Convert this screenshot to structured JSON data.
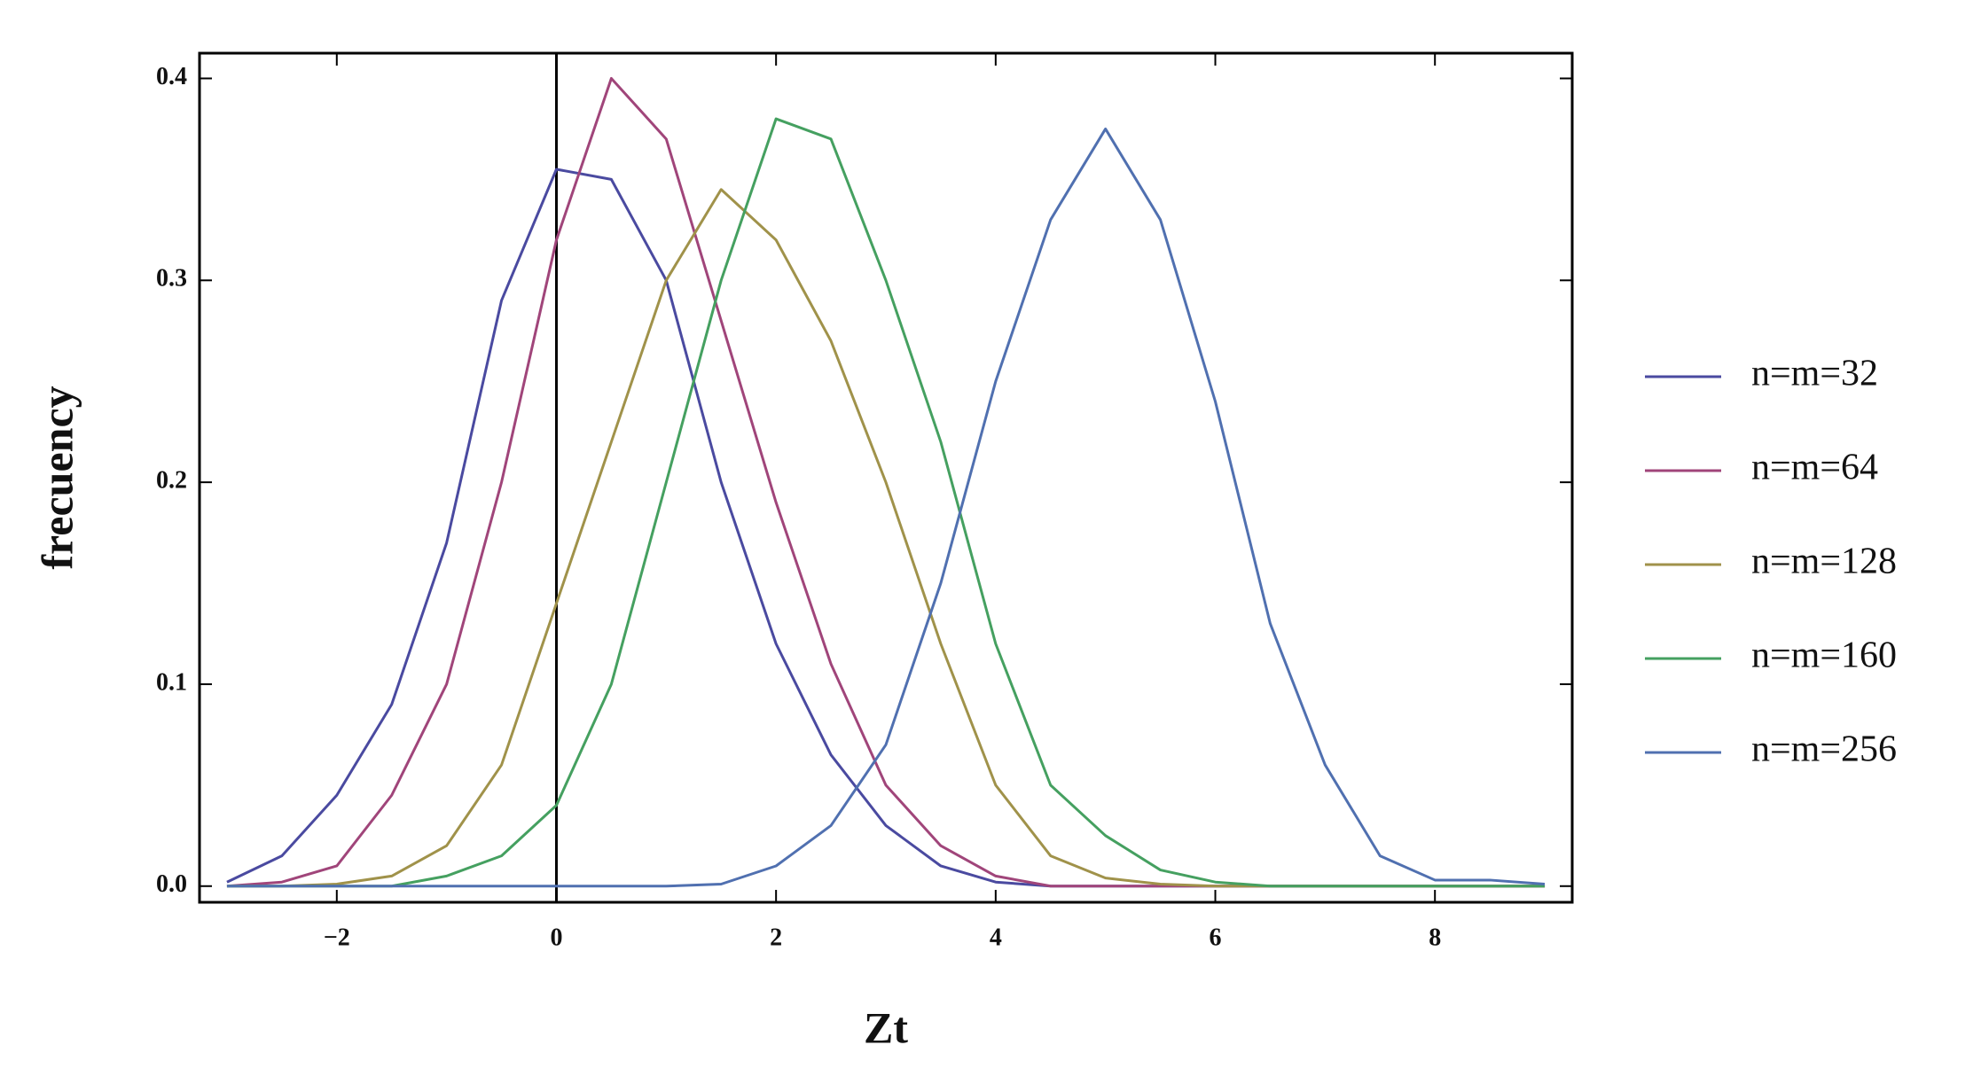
{
  "chart_data": {
    "type": "line",
    "x_label": "Zt",
    "y_label": "frecuency",
    "x": [
      -3,
      -2.5,
      -2,
      -1.5,
      -1,
      -0.5,
      0,
      0.5,
      1,
      1.5,
      2,
      2.5,
      3,
      3.5,
      4,
      4.5,
      5,
      5.5,
      6,
      6.5,
      7,
      7.5,
      8,
      8.5,
      9
    ],
    "series": [
      {
        "name": "n=m=32",
        "color": "#4a4aa0",
        "values": [
          0.002,
          0.015,
          0.045,
          0.09,
          0.17,
          0.29,
          0.355,
          0.35,
          0.3,
          0.2,
          0.12,
          0.065,
          0.03,
          0.01,
          0.002,
          0,
          0,
          0,
          0,
          0,
          0,
          0,
          0,
          0,
          0
        ]
      },
      {
        "name": "n=m=64",
        "color": "#a0457a",
        "values": [
          0,
          0.002,
          0.01,
          0.045,
          0.1,
          0.2,
          0.32,
          0.4,
          0.37,
          0.28,
          0.19,
          0.11,
          0.05,
          0.02,
          0.005,
          0,
          0,
          0,
          0,
          0,
          0,
          0,
          0,
          0,
          0
        ]
      },
      {
        "name": "n=m=128",
        "color": "#a0924a",
        "values": [
          0,
          0,
          0.001,
          0.005,
          0.02,
          0.06,
          0.14,
          0.22,
          0.3,
          0.345,
          0.32,
          0.27,
          0.2,
          0.12,
          0.05,
          0.015,
          0.004,
          0.001,
          0,
          0,
          0,
          0,
          0,
          0,
          0
        ]
      },
      {
        "name": "n=m=160",
        "color": "#45a060",
        "values": [
          0,
          0,
          0,
          0,
          0.005,
          0.015,
          0.04,
          0.1,
          0.2,
          0.3,
          0.38,
          0.37,
          0.3,
          0.22,
          0.12,
          0.05,
          0.025,
          0.008,
          0.002,
          0,
          0,
          0,
          0,
          0,
          0
        ]
      },
      {
        "name": "n=m=256",
        "color": "#5070b0",
        "values": [
          0,
          0,
          0,
          0,
          0,
          0,
          0,
          0,
          0,
          0.001,
          0.01,
          0.03,
          0.07,
          0.15,
          0.25,
          0.33,
          0.375,
          0.33,
          0.24,
          0.13,
          0.06,
          0.015,
          0.003,
          0.003,
          0.001
        ]
      }
    ],
    "xlim": [
      -3.25,
      9.25
    ],
    "ylim": [
      -0.008,
      0.4125
    ],
    "xticks": [
      {
        "value": -2,
        "label": "−2"
      },
      0,
      2,
      4,
      6,
      8
    ],
    "yticks": [
      {
        "value": 0,
        "label": "0.0"
      },
      0.1,
      0.2,
      0.3,
      0.4
    ],
    "legend": "right"
  }
}
